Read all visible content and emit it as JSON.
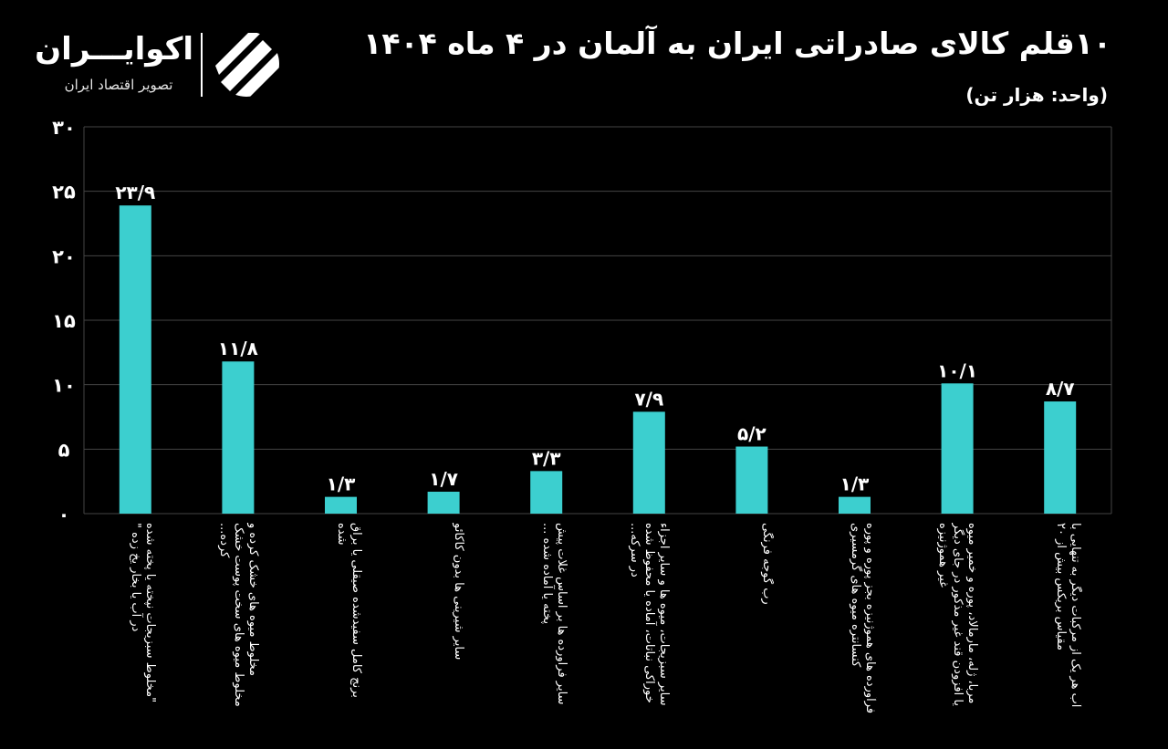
{
  "header": {
    "title": "۱۰قلم کالای صادراتی ایران به  آلمان  در ۴ ماه ۱۴۰۴",
    "subtitle": "(واحد: هزار تن)"
  },
  "brand": {
    "name": "اکوایـــران",
    "tagline": "تصویر اقتصاد ایران",
    "logo_icon": "ecoiran-logo-icon"
  },
  "colors": {
    "bar": "#3ccfcf",
    "grid": "#444444",
    "background": "#000000",
    "text": "#ffffff"
  },
  "chart_data": {
    "type": "bar",
    "title": "۱۰قلم کالای صادراتی ایران به  آلمان  در ۴ ماه ۱۴۰۴",
    "ylabel": "",
    "xlabel": "",
    "ylim": [
      0,
      30
    ],
    "yticks": [
      0,
      5,
      10,
      15,
      20,
      25,
      30
    ],
    "ytick_labels": [
      "۰",
      "۵",
      "۱۰",
      "۱۵",
      "۲۰",
      "۲۵",
      "۳۰"
    ],
    "grid": true,
    "categories": [
      "\"مخلوط سبزیجات نپخته یا پخته شده در آب یا بخار یخ زده \"",
      "مخلوط میوه های خشک کرده و مخلوط میوه های سخت پوست خشک کرده...",
      "برنج کامل سفیدشده صیقلی یا براق شده",
      "سایر شیرینی ها بدون کاکائو",
      "سایر فراورده ها بر اساس غلات پیش پخته یا آماده شده ...",
      "سایر سبزیجات، میوه ها و سایر اجزاء خوراکی نباتات، آماده یا محفوظ شده در سرکه...",
      "رب گوجه فرنگی",
      "فرآورده های هموژنیزه بجز پوره و پوره کنسانتره میوه های گرمسیری",
      "مربا، ژله، مارمالاد، پوره و خمیر میوه یا افزودن قند غیر مذکور در جای دیگر غیر هموژنیزه",
      "آب هر یک از مرکبات دیگر به تنهایی با مقیاس بریکس بیش از ۲۰"
    ],
    "values": [
      23.9,
      11.8,
      1.3,
      1.7,
      3.3,
      7.9,
      5.2,
      1.3,
      10.1,
      8.7
    ],
    "data_labels": [
      "۲۳/۹",
      "۱۱/۸",
      "۱/۳",
      "۱/۷",
      "۳/۳",
      "۷/۹",
      "۵/۲",
      "۱/۳",
      "۱۰/۱",
      "۸/۷"
    ]
  }
}
